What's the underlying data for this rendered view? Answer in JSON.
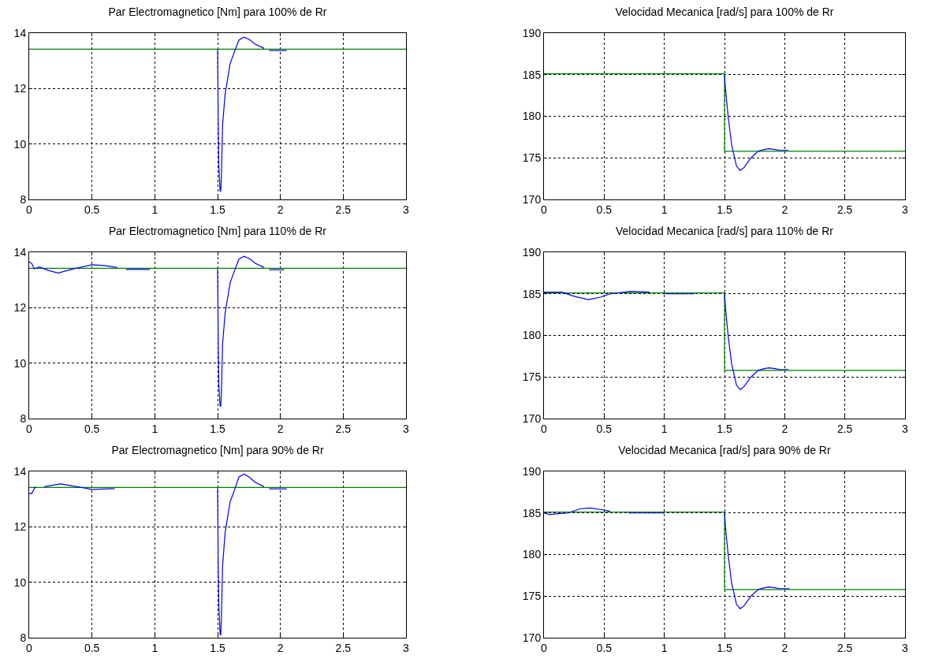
{
  "chart_data": [
    {
      "type": "line",
      "title": "Par Electromagnetico [Nm] para 100% de Rr",
      "xlim": [
        0,
        3
      ],
      "xticks": [
        0,
        0.5,
        1,
        1.5,
        2,
        2.5,
        3
      ],
      "ylim": [
        8,
        14
      ],
      "yticks": [
        8,
        10,
        12,
        14
      ],
      "grid": true,
      "legend": false,
      "series": [
        {
          "color": "#0000ff",
          "x": [
            1.5,
            1.505,
            1.51,
            1.52,
            1.525,
            1.53,
            1.54,
            1.56,
            1.6,
            1.64,
            1.67,
            1.71,
            1.75,
            1.8,
            1.87,
            1.89,
            1.91,
            2.05
          ],
          "values": [
            13.4,
            10.8,
            9.2,
            8.3,
            8.3,
            8.8,
            10.7,
            11.8,
            12.9,
            13.4,
            13.75,
            13.85,
            13.78,
            13.6,
            13.45,
            null,
            13.37,
            13.37
          ]
        },
        {
          "color": "#008000",
          "x": [
            0,
            3
          ],
          "values": [
            13.42,
            13.42
          ]
        }
      ]
    },
    {
      "type": "line",
      "title": "Velocidad Mecanica [rad/s] para 100% de Rr",
      "xlim": [
        0,
        3
      ],
      "xticks": [
        0,
        0.5,
        1,
        1.5,
        2,
        2.5,
        3
      ],
      "ylim": [
        170,
        190
      ],
      "yticks": [
        170,
        175,
        180,
        185,
        190
      ],
      "grid": true,
      "legend": false,
      "series": [
        {
          "color": "#0000ff",
          "x": [
            1.5,
            1.51,
            1.53,
            1.56,
            1.6,
            1.63,
            1.66,
            1.72,
            1.78,
            1.83,
            1.87,
            1.92,
            1.96,
            2.03
          ],
          "values": [
            185,
            183,
            180,
            176.5,
            174,
            173.5,
            173.8,
            175,
            175.8,
            176,
            176.1,
            176,
            175.9,
            175.9
          ]
        },
        {
          "color": "#008000",
          "x": [
            0,
            1.5,
            1.5,
            3
          ],
          "values": [
            185.1,
            185.1,
            175.8,
            175.8
          ]
        }
      ]
    },
    {
      "type": "line",
      "title": "Par Electromagnetico [Nm] para 110% de Rr",
      "xlim": [
        0,
        3
      ],
      "xticks": [
        0,
        0.5,
        1,
        1.5,
        2,
        2.5,
        3
      ],
      "ylim": [
        8,
        14
      ],
      "yticks": [
        8,
        10,
        12,
        14
      ],
      "grid": true,
      "legend": false,
      "series": [
        {
          "color": "#0000ff",
          "x": [
            0,
            0.02,
            0.04,
            0.08,
            0.15,
            0.23,
            0.35,
            0.5,
            0.6,
            0.7,
            0.74,
            0.77,
            0.96,
            1.2,
            1.5,
            1.505,
            1.51,
            1.52,
            1.525,
            1.53,
            1.54,
            1.56,
            1.6,
            1.64,
            1.67,
            1.71,
            1.75,
            1.8,
            1.87,
            1.89,
            1.91,
            2.03
          ],
          "values": [
            13.65,
            13.6,
            13.4,
            13.47,
            13.35,
            13.25,
            13.4,
            13.55,
            13.52,
            13.45,
            null,
            13.38,
            13.38,
            null,
            13.4,
            10.8,
            9.2,
            8.45,
            8.45,
            8.9,
            10.7,
            11.8,
            12.9,
            13.4,
            13.75,
            13.85,
            13.78,
            13.6,
            13.45,
            null,
            13.37,
            13.37
          ]
        },
        {
          "color": "#008000",
          "x": [
            0,
            3
          ],
          "values": [
            13.42,
            13.42
          ]
        }
      ]
    },
    {
      "type": "line",
      "title": "Velocidad Mecanica [rad/s] para 110% de Rr",
      "xlim": [
        0,
        3
      ],
      "xticks": [
        0,
        0.5,
        1,
        1.5,
        2,
        2.5,
        3
      ],
      "ylim": [
        170,
        190
      ],
      "yticks": [
        170,
        175,
        180,
        185,
        190
      ],
      "grid": true,
      "legend": false,
      "series": [
        {
          "color": "#0000ff",
          "x": [
            0,
            0.15,
            0.25,
            0.37,
            0.47,
            0.55,
            0.72,
            0.88,
            0.94,
            1.0,
            1.25,
            1.38,
            1.5,
            1.51,
            1.53,
            1.56,
            1.6,
            1.63,
            1.66,
            1.72,
            1.78,
            1.83,
            1.87,
            1.92,
            1.96,
            2.03
          ],
          "values": [
            185.2,
            185.2,
            184.7,
            184.3,
            184.6,
            185,
            185.3,
            185.2,
            null,
            185,
            185,
            null,
            185,
            183,
            180,
            176.5,
            174,
            173.5,
            173.8,
            175,
            175.8,
            176,
            176.1,
            176,
            175.9,
            175.9
          ]
        },
        {
          "color": "#008000",
          "x": [
            0,
            1.5,
            1.5,
            3
          ],
          "values": [
            185.1,
            185.1,
            175.8,
            175.8
          ]
        }
      ]
    },
    {
      "type": "line",
      "title": "Par Electromagnetico [Nm] para 90% de Rr",
      "xlim": [
        0,
        3
      ],
      "xticks": [
        0,
        0.5,
        1,
        1.5,
        2,
        2.5,
        3
      ],
      "ylim": [
        8,
        14
      ],
      "yticks": [
        8,
        10,
        12,
        14
      ],
      "grid": true,
      "legend": false,
      "series": [
        {
          "color": "#0000ff",
          "x": [
            0,
            0.02,
            0.05,
            0.08,
            0.12,
            0.25,
            0.38,
            0.5,
            0.68,
            1.1,
            1.5,
            1.505,
            1.51,
            1.52,
            1.525,
            1.53,
            1.54,
            1.56,
            1.6,
            1.64,
            1.67,
            1.71,
            1.75,
            1.8,
            1.87,
            1.89,
            1.91,
            2.05
          ],
          "values": [
            13.2,
            13.2,
            13.45,
            null,
            13.45,
            13.55,
            13.45,
            13.35,
            13.38,
            null,
            13.4,
            10.6,
            9.2,
            8.1,
            8.1,
            8.7,
            10.6,
            11.8,
            12.9,
            13.4,
            13.8,
            13.9,
            13.8,
            13.6,
            13.45,
            null,
            13.37,
            13.37
          ]
        },
        {
          "color": "#008000",
          "x": [
            0,
            3
          ],
          "values": [
            13.42,
            13.42
          ]
        }
      ]
    },
    {
      "type": "line",
      "title": "Velocidad Mecanica [rad/s] para 90% de Rr",
      "xlim": [
        0,
        3
      ],
      "xticks": [
        0,
        0.5,
        1,
        1.5,
        2,
        2.5,
        3
      ],
      "ylim": [
        170,
        190
      ],
      "yticks": [
        170,
        175,
        180,
        185,
        190
      ],
      "grid": true,
      "legend": false,
      "series": [
        {
          "color": "#0000ff",
          "x": [
            0,
            0.05,
            0.1,
            0.2,
            0.3,
            0.38,
            0.48,
            0.55,
            0.62,
            0.7,
            1.0,
            1.25,
            1.5,
            1.51,
            1.53,
            1.56,
            1.6,
            1.63,
            1.66,
            1.72,
            1.78,
            1.83,
            1.87,
            1.92,
            1.96,
            2.04
          ],
          "values": [
            185,
            184.8,
            184.9,
            185,
            185.5,
            185.6,
            185.4,
            185.2,
            null,
            185,
            185,
            null,
            185,
            183,
            180,
            176.5,
            174,
            173.5,
            173.8,
            175,
            175.8,
            176,
            176.1,
            176,
            175.9,
            175.9
          ]
        },
        {
          "color": "#008000",
          "x": [
            0,
            1.5,
            1.5,
            3
          ],
          "values": [
            185.1,
            185.1,
            175.8,
            175.8
          ]
        }
      ]
    }
  ]
}
